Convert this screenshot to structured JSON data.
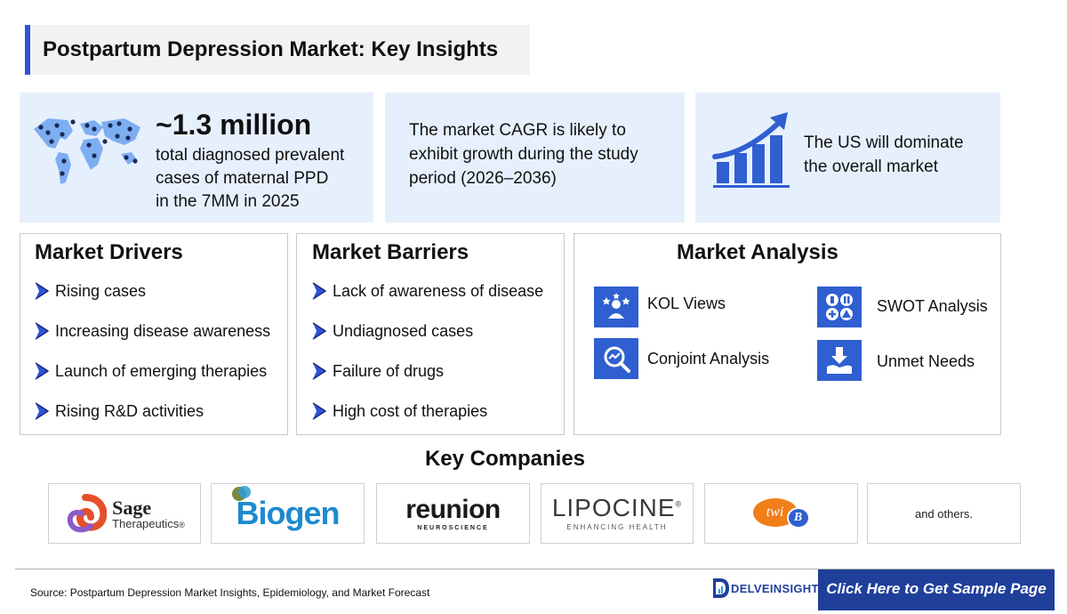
{
  "title": "Postpartum Depression Market: Key Insights",
  "stats": {
    "prevalence_value": "~1.3 million",
    "prevalence_lines": [
      "total diagnosed prevalent",
      "cases of maternal PPD",
      "in the 7MM in 2025"
    ],
    "cagr_lines": [
      "The market CAGR is likely to",
      "exhibit growth during the study",
      "period (2026–2036)"
    ],
    "us_lines": [
      "The US will dominate",
      "the overall market"
    ]
  },
  "drivers": {
    "title": "Market Drivers",
    "items": [
      "Rising cases",
      "Increasing disease awareness",
      "Launch of emerging therapies",
      "Rising R&D activities"
    ]
  },
  "barriers": {
    "title": "Market Barriers",
    "items": [
      "Lack of awareness of disease",
      "Undiagnosed cases",
      "Failure of drugs",
      "High cost of therapies"
    ]
  },
  "analysis": {
    "title": "Market Analysis",
    "items": [
      {
        "label": "KOL Views",
        "icon": "kol-icon"
      },
      {
        "label": "SWOT Analysis",
        "icon": "swot-icon"
      },
      {
        "label": "Conjoint Analysis",
        "icon": "conjoint-icon"
      },
      {
        "label": "Unmet Needs",
        "icon": "unmet-needs-icon"
      }
    ]
  },
  "companies": {
    "title": "Key Companies",
    "sage": {
      "name": "Sage",
      "sub": "Therapeutics",
      "reg": "®"
    },
    "biogen": "Biogen",
    "reunion": {
      "name": "reunion",
      "sub": "NEUROSCIENCE"
    },
    "lipocine": {
      "name": "LIPOCINE",
      "sub": "ENHANCING HEALTH",
      "tm": "®"
    },
    "twib": {
      "name": "twi",
      "letter": "B"
    },
    "others": "and others."
  },
  "footer": {
    "source": "Source: Postpartum Depression Market Insights, Epidemiology, and Market Forecast",
    "brand": "DELVEINSIGHT",
    "cta": "Click Here to Get Sample Page"
  },
  "colors": {
    "accent": "#2f55d4",
    "icon_blue": "#2f5fd0",
    "stat_bg": "#e6f0fc",
    "cta_bg": "#1f3f9a"
  }
}
